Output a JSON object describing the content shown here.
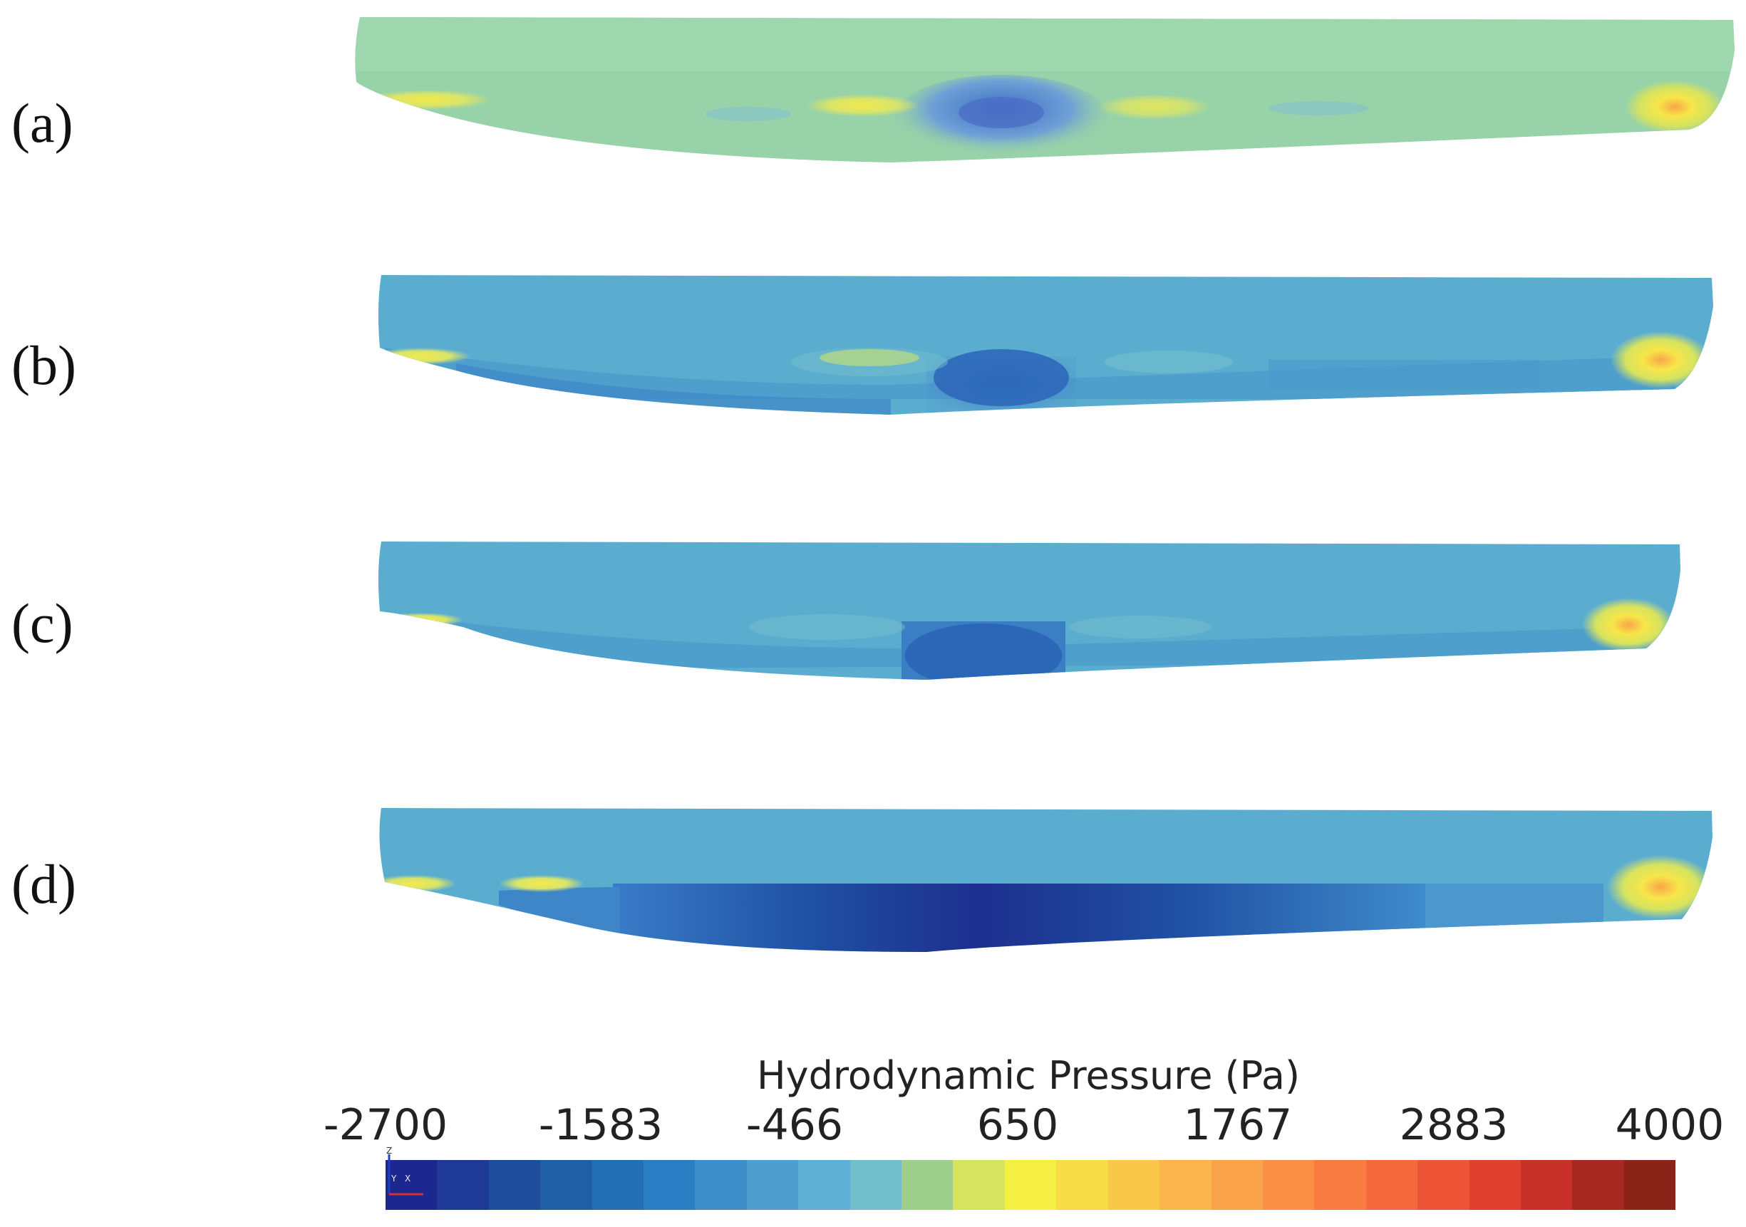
{
  "panels": [
    {
      "label": "(a)",
      "surface_color": "#97d2a8"
    },
    {
      "label": "(b)",
      "surface_color": "#5badd0"
    },
    {
      "label": "(c)",
      "surface_color": "#5badd0"
    },
    {
      "label": "(d)",
      "surface_color": "#5badd0"
    }
  ],
  "colorbar": {
    "title": "Hydrodynamic Pressure (Pa)",
    "ticks": [
      "-2700",
      "-1583",
      "-466",
      "650",
      "1767",
      "2883",
      "4000"
    ],
    "colors": [
      "#1d2790",
      "#1f3a96",
      "#1e4d9b",
      "#1f5fa6",
      "#2370b4",
      "#2a7fc4",
      "#3e8ec9",
      "#4f9ecd",
      "#5fb0d4",
      "#72bfcc",
      "#9fd08b",
      "#d6e35f",
      "#f5ee43",
      "#f8dc46",
      "#f9c84a",
      "#fbb54c",
      "#fba34a",
      "#fb8f46",
      "#f87b41",
      "#f4693d",
      "#ee5537",
      "#e13f30",
      "#c8302a",
      "#a72a22",
      "#8a2418"
    ]
  },
  "axis_triad": {
    "z": "Z",
    "y": "Y",
    "x": "X"
  }
}
